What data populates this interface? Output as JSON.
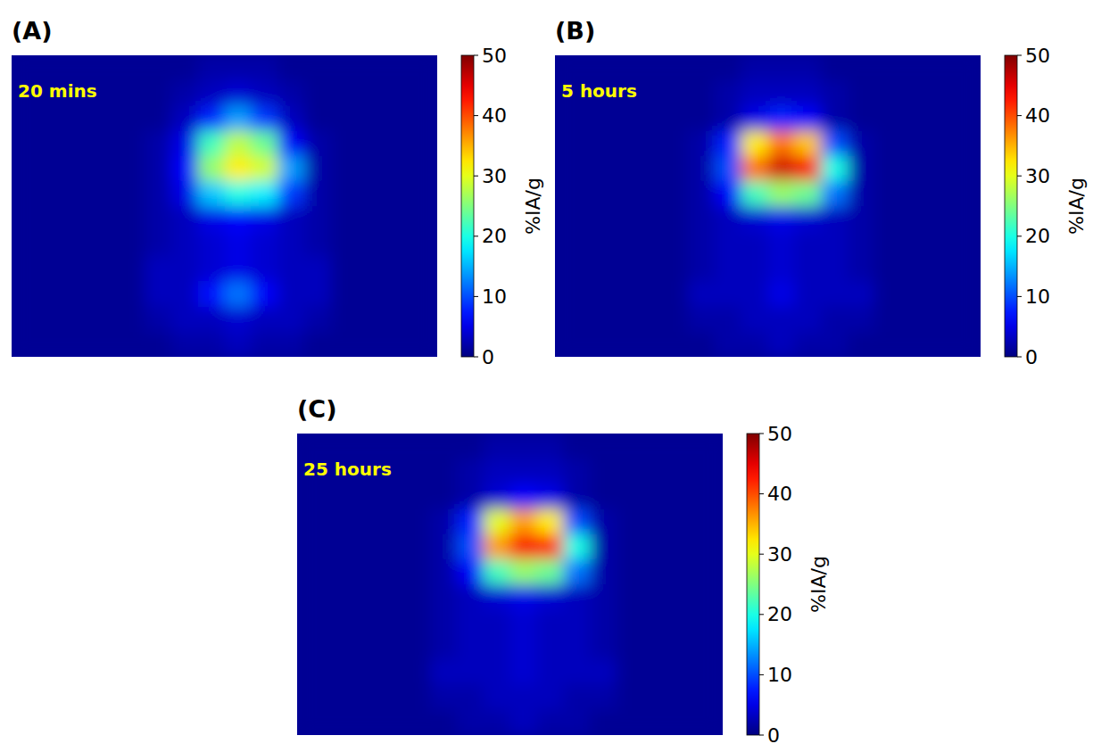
{
  "chart_data": [
    {
      "type": "heatmap",
      "title": "(A)",
      "subtitle": "20 mins",
      "tick_labels": false,
      "colorbar": {
        "label": "%IA/g",
        "range": [
          0,
          50
        ],
        "ticks": [
          0,
          10,
          20,
          30,
          40,
          50
        ]
      },
      "cells": [
        [
          1,
          1,
          1,
          1,
          1,
          1,
          1,
          2,
          2,
          2,
          1,
          1,
          1,
          1,
          1,
          1
        ],
        [
          1,
          1,
          1,
          1,
          1,
          1,
          2,
          3,
          4,
          3,
          2,
          1,
          1,
          1,
          1,
          1
        ],
        [
          1,
          1,
          1,
          1,
          1,
          1,
          3,
          8,
          14,
          9,
          3,
          1,
          1,
          1,
          1,
          1
        ],
        [
          1,
          1,
          1,
          1,
          1,
          2,
          5,
          22,
          28,
          24,
          6,
          2,
          1,
          1,
          1,
          1
        ],
        [
          1,
          1,
          1,
          1,
          1,
          2,
          6,
          26,
          32,
          29,
          14,
          2,
          1,
          1,
          1,
          1
        ],
        [
          1,
          1,
          1,
          1,
          1,
          2,
          5,
          16,
          20,
          18,
          9,
          2,
          1,
          1,
          1,
          1
        ],
        [
          1,
          1,
          1,
          1,
          1,
          2,
          3,
          5,
          6,
          5,
          3,
          2,
          1,
          1,
          1,
          1
        ],
        [
          1,
          1,
          1,
          1,
          1,
          2,
          3,
          4,
          5,
          4,
          3,
          2,
          1,
          1,
          1,
          1
        ],
        [
          1,
          1,
          1,
          1,
          1,
          3,
          3,
          4,
          5,
          4,
          3,
          3,
          1,
          1,
          1,
          1
        ],
        [
          1,
          1,
          1,
          1,
          1,
          3,
          3,
          7,
          12,
          6,
          3,
          3,
          1,
          1,
          1,
          1
        ],
        [
          1,
          1,
          1,
          1,
          1,
          2,
          3,
          3,
          4,
          3,
          3,
          2,
          1,
          1,
          1,
          1
        ],
        [
          1,
          1,
          1,
          1,
          1,
          1,
          2,
          2,
          3,
          2,
          2,
          1,
          1,
          1,
          1,
          1
        ]
      ]
    },
    {
      "type": "heatmap",
      "title": "(B)",
      "subtitle": "5 hours",
      "tick_labels": false,
      "colorbar": {
        "label": "%IA/g",
        "range": [
          0,
          50
        ],
        "ticks": [
          0,
          10,
          20,
          30,
          40,
          50
        ]
      },
      "cells": [
        [
          1,
          1,
          1,
          1,
          1,
          1,
          1,
          2,
          2,
          2,
          1,
          1,
          1,
          1,
          1,
          1
        ],
        [
          1,
          1,
          1,
          1,
          1,
          1,
          2,
          3,
          3,
          3,
          2,
          1,
          1,
          1,
          1,
          1
        ],
        [
          1,
          1,
          1,
          1,
          1,
          1,
          2,
          5,
          8,
          6,
          2,
          1,
          1,
          1,
          1,
          1
        ],
        [
          1,
          1,
          1,
          1,
          1,
          2,
          8,
          32,
          38,
          34,
          10,
          2,
          1,
          1,
          1,
          1
        ],
        [
          1,
          1,
          1,
          1,
          1,
          2,
          10,
          38,
          46,
          44,
          20,
          2,
          1,
          1,
          1,
          1
        ],
        [
          1,
          1,
          1,
          1,
          1,
          2,
          6,
          22,
          26,
          24,
          12,
          2,
          1,
          1,
          1,
          1
        ],
        [
          1,
          1,
          1,
          1,
          1,
          2,
          3,
          4,
          5,
          4,
          3,
          2,
          1,
          1,
          1,
          1
        ],
        [
          1,
          1,
          1,
          1,
          1,
          2,
          3,
          3,
          4,
          3,
          3,
          2,
          1,
          1,
          1,
          1
        ],
        [
          1,
          1,
          1,
          1,
          1,
          2,
          3,
          3,
          4,
          3,
          3,
          2,
          1,
          1,
          1,
          1
        ],
        [
          1,
          1,
          1,
          1,
          1,
          3,
          3,
          3,
          5,
          3,
          3,
          3,
          1,
          1,
          1,
          1
        ],
        [
          1,
          1,
          1,
          1,
          1,
          2,
          2,
          3,
          3,
          3,
          2,
          2,
          1,
          1,
          1,
          1
        ],
        [
          1,
          1,
          1,
          1,
          1,
          1,
          2,
          2,
          3,
          2,
          2,
          1,
          1,
          1,
          1,
          1
        ]
      ]
    },
    {
      "type": "heatmap",
      "title": "(C)",
      "subtitle": "25 hours",
      "tick_labels": false,
      "colorbar": {
        "label": "%IA/g",
        "range": [
          0,
          50
        ],
        "ticks": [
          0,
          10,
          20,
          30,
          40,
          50
        ]
      },
      "cells": [
        [
          1,
          1,
          1,
          1,
          1,
          1,
          1,
          2,
          2,
          2,
          1,
          1,
          1,
          1,
          1,
          1
        ],
        [
          1,
          1,
          1,
          1,
          1,
          1,
          2,
          3,
          3,
          3,
          2,
          1,
          1,
          1,
          1,
          1
        ],
        [
          1,
          1,
          1,
          1,
          1,
          1,
          2,
          4,
          6,
          5,
          2,
          1,
          1,
          1,
          1,
          1
        ],
        [
          1,
          1,
          1,
          1,
          1,
          2,
          8,
          30,
          36,
          32,
          10,
          2,
          1,
          1,
          1,
          1
        ],
        [
          1,
          1,
          1,
          1,
          1,
          2,
          10,
          36,
          44,
          42,
          20,
          2,
          1,
          1,
          1,
          1
        ],
        [
          1,
          1,
          1,
          1,
          1,
          2,
          6,
          22,
          26,
          24,
          12,
          2,
          1,
          1,
          1,
          1
        ],
        [
          1,
          1,
          1,
          1,
          1,
          2,
          3,
          4,
          5,
          4,
          3,
          2,
          1,
          1,
          1,
          1
        ],
        [
          1,
          1,
          1,
          1,
          1,
          2,
          3,
          3,
          4,
          3,
          3,
          2,
          1,
          1,
          1,
          1
        ],
        [
          1,
          1,
          1,
          1,
          1,
          2,
          3,
          3,
          4,
          3,
          3,
          2,
          1,
          1,
          1,
          1
        ],
        [
          1,
          1,
          1,
          1,
          1,
          3,
          3,
          3,
          4,
          3,
          3,
          3,
          1,
          1,
          1,
          1
        ],
        [
          1,
          1,
          1,
          1,
          1,
          2,
          2,
          3,
          3,
          3,
          2,
          2,
          1,
          1,
          1,
          1
        ],
        [
          1,
          1,
          1,
          1,
          1,
          1,
          2,
          2,
          3,
          2,
          2,
          1,
          1,
          1,
          1,
          1
        ]
      ]
    }
  ]
}
